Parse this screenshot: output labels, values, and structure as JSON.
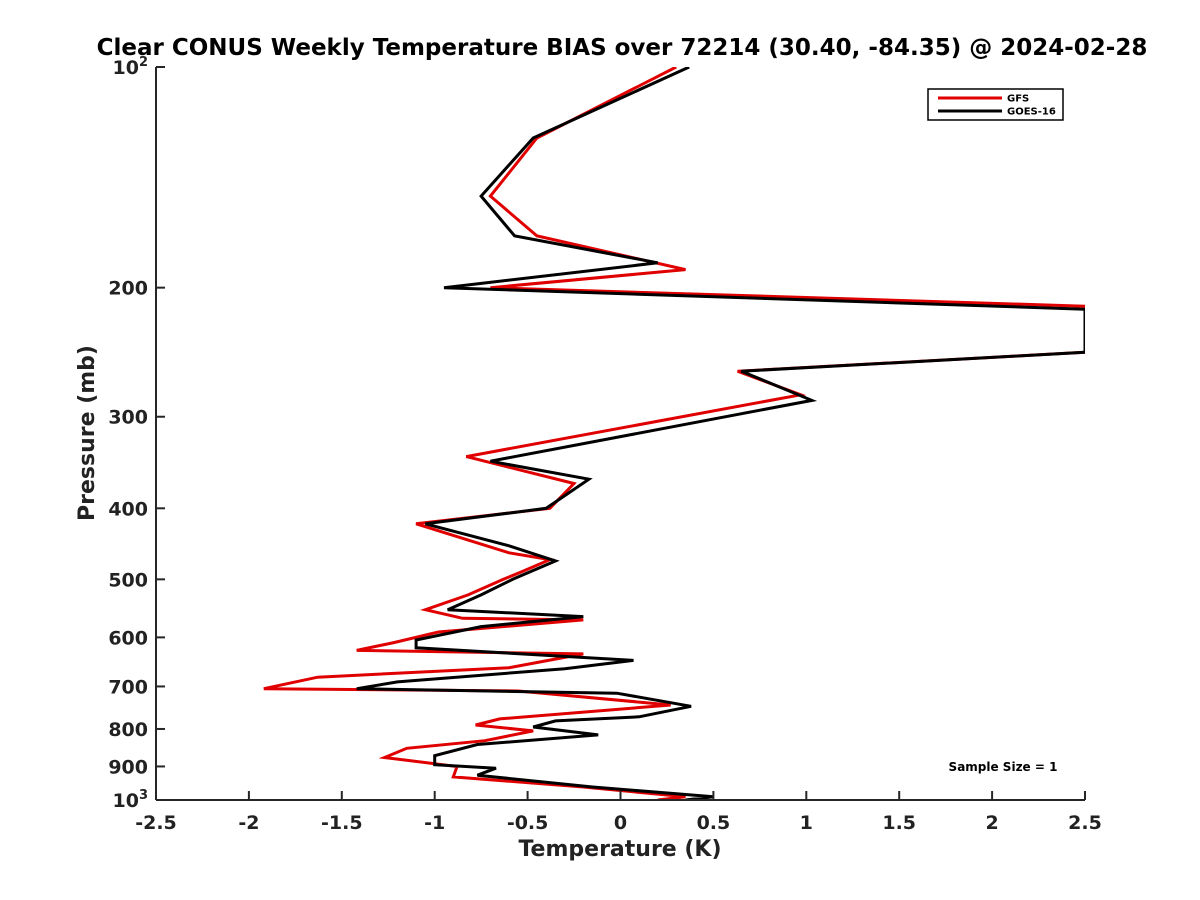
{
  "chart_data": {
    "type": "line",
    "title": "Clear CONUS Weekly Temperature BIAS over 72214 (30.40, -84.35) @ 2024-02-28",
    "xlabel": "Temperature (K)",
    "ylabel": "Pressure (mb)",
    "xlim": [
      -2.5,
      2.5
    ],
    "ylim": [
      1000,
      100
    ],
    "yscale": "log",
    "y_reversed": true,
    "grid": false,
    "legend_position": "top-right",
    "x_ticks": [
      {
        "value": -2.5,
        "label": "-2.5"
      },
      {
        "value": -2,
        "label": "-2"
      },
      {
        "value": -1.5,
        "label": "-1.5"
      },
      {
        "value": -1,
        "label": "-1"
      },
      {
        "value": -0.5,
        "label": "-0.5"
      },
      {
        "value": 0,
        "label": "0"
      },
      {
        "value": 0.5,
        "label": "0.5"
      },
      {
        "value": 1,
        "label": "1"
      },
      {
        "value": 1.5,
        "label": "1.5"
      },
      {
        "value": 2,
        "label": "2"
      },
      {
        "value": 2.5,
        "label": "2.5"
      }
    ],
    "y_ticks": [
      {
        "value": 100,
        "label": "10",
        "sup": "2"
      },
      {
        "value": 200,
        "label": "200"
      },
      {
        "value": 300,
        "label": "300"
      },
      {
        "value": 400,
        "label": "400"
      },
      {
        "value": 500,
        "label": "500"
      },
      {
        "value": 600,
        "label": "600"
      },
      {
        "value": 700,
        "label": "700"
      },
      {
        "value": 800,
        "label": "800"
      },
      {
        "value": 900,
        "label": "900"
      },
      {
        "value": 1000,
        "label": "10",
        "sup": "3"
      }
    ],
    "series": [
      {
        "name": "GFS",
        "color": "#e00000",
        "points": [
          [
            0.3,
            100
          ],
          [
            -0.45,
            125
          ],
          [
            -0.7,
            150
          ],
          [
            -0.45,
            170
          ],
          [
            0.35,
            189
          ],
          [
            -0.7,
            200
          ],
          [
            2.5,
            212
          ],
          [
            2.5,
            245
          ],
          [
            0.63,
            260
          ],
          [
            0.97,
            280
          ],
          [
            -0.83,
            340
          ],
          [
            -0.25,
            370
          ],
          [
            -0.38,
            400
          ],
          [
            -1.1,
            420
          ],
          [
            -0.6,
            460
          ],
          [
            -0.38,
            470
          ],
          [
            -0.53,
            488
          ],
          [
            -0.63,
            500
          ],
          [
            -0.82,
            525
          ],
          [
            -1.05,
            550
          ],
          [
            -0.85,
            565
          ],
          [
            -0.2,
            568
          ],
          [
            -0.98,
            590
          ],
          [
            -1.22,
            610
          ],
          [
            -1.42,
            625
          ],
          [
            -0.2,
            632
          ],
          [
            -0.6,
            660
          ],
          [
            -1.63,
            680
          ],
          [
            -1.92,
            705
          ],
          [
            -0.55,
            710
          ],
          [
            0.27,
            742
          ],
          [
            -0.65,
            775
          ],
          [
            -0.78,
            790
          ],
          [
            -0.47,
            805
          ],
          [
            -0.73,
            830
          ],
          [
            -1.15,
            850
          ],
          [
            -1.27,
            875
          ],
          [
            -0.88,
            900
          ],
          [
            -0.9,
            930
          ],
          [
            -0.2,
            960
          ],
          [
            0.35,
            990
          ],
          [
            0.2,
            1000
          ]
        ]
      },
      {
        "name": "GOES-16",
        "color": "#000000",
        "points": [
          [
            0.37,
            100
          ],
          [
            -0.47,
            125
          ],
          [
            -0.75,
            150
          ],
          [
            -0.57,
            170
          ],
          [
            0.2,
            185
          ],
          [
            -0.95,
            200
          ],
          [
            2.5,
            214
          ],
          [
            2.5,
            245
          ],
          [
            0.65,
            260
          ],
          [
            1.03,
            285
          ],
          [
            -0.7,
            345
          ],
          [
            -0.17,
            365
          ],
          [
            -0.4,
            400
          ],
          [
            -1.05,
            420
          ],
          [
            -0.6,
            450
          ],
          [
            -0.35,
            472
          ],
          [
            -0.58,
            500
          ],
          [
            -0.75,
            525
          ],
          [
            -0.93,
            550
          ],
          [
            -0.2,
            562
          ],
          [
            -0.75,
            580
          ],
          [
            -1.1,
            605
          ],
          [
            -1.1,
            620
          ],
          [
            0.07,
            645
          ],
          [
            -0.3,
            662
          ],
          [
            -1.2,
            690
          ],
          [
            -1.42,
            705
          ],
          [
            -0.02,
            715
          ],
          [
            0.38,
            745
          ],
          [
            0.1,
            770
          ],
          [
            -0.35,
            780
          ],
          [
            -0.47,
            795
          ],
          [
            -0.12,
            815
          ],
          [
            -0.77,
            840
          ],
          [
            -1.0,
            870
          ],
          [
            -1.0,
            895
          ],
          [
            -0.67,
            905
          ],
          [
            -0.77,
            925
          ],
          [
            -0.15,
            960
          ],
          [
            0.5,
            990
          ],
          [
            0.35,
            1000
          ]
        ]
      }
    ],
    "annotations": [
      "Sample Size = 1"
    ]
  }
}
